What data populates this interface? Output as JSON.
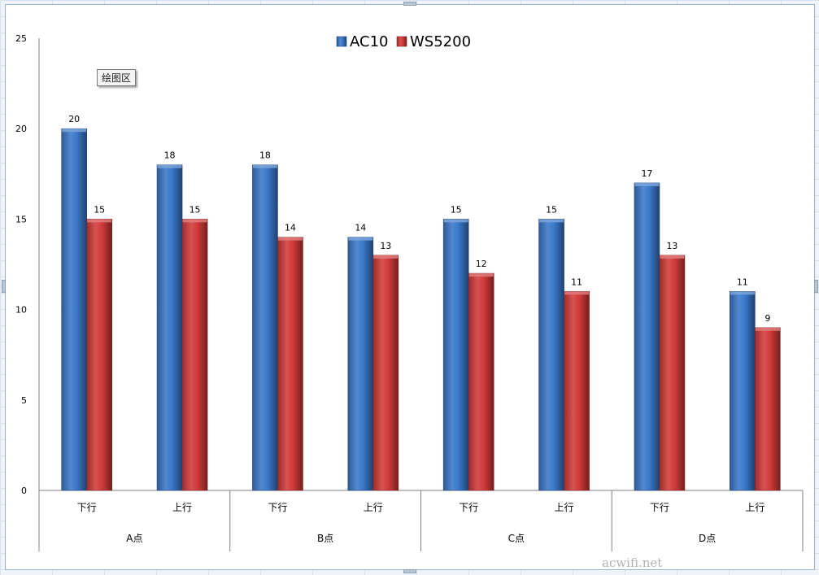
{
  "chart_data": {
    "type": "bar",
    "categories": [
      "下行",
      "上行",
      "下行",
      "上行",
      "下行",
      "上行",
      "下行",
      "上行"
    ],
    "groups": [
      "A点",
      "B点",
      "C点",
      "D点"
    ],
    "series": [
      {
        "name": "AC10",
        "color": "#3a78c9",
        "values": [
          20,
          18,
          18,
          14,
          15,
          15,
          17,
          11
        ]
      },
      {
        "name": "WS5200",
        "color": "#d23a3a",
        "values": [
          15,
          15,
          14,
          13,
          12,
          11,
          13,
          9
        ]
      }
    ],
    "ylim": [
      0,
      25
    ],
    "yticks": [
      "0",
      "5",
      "10",
      "15",
      "20",
      "25"
    ],
    "legend_position": "top-center",
    "data_labels": true,
    "grid": false
  },
  "tooltip_label": "绘图区",
  "watermark": "acwifi.net"
}
